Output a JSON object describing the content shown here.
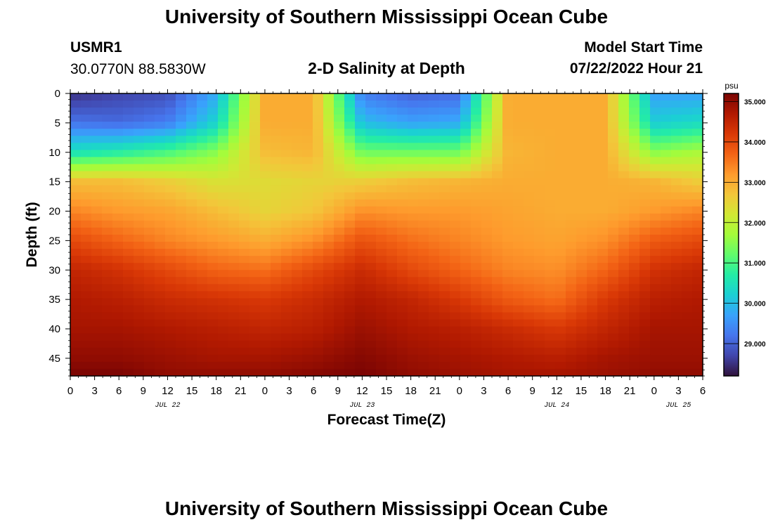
{
  "page": {
    "title": "University of Southern Mississippi Ocean Cube",
    "station": "USMR1",
    "coords": "30.0770N  88.5830W",
    "subtitle": "2-D Salinity at Depth",
    "model_start_label": "Model Start Time",
    "model_start_value": "07/22/2022 Hour 21",
    "title_repeat": "University of Southern Mississippi Ocean Cube"
  },
  "chart_data": {
    "type": "heatmap",
    "title": "2-D Salinity at Depth",
    "xlabel": "Forecast Time(Z)",
    "ylabel": "Depth (ft)",
    "x_hours_range": [
      0,
      78
    ],
    "x_tick_labels": [
      "0",
      "3",
      "6",
      "9",
      "12",
      "15",
      "18",
      "21",
      "0",
      "3",
      "6",
      "9",
      "12",
      "15",
      "18",
      "21",
      "0",
      "3",
      "6",
      "9",
      "12",
      "15",
      "18",
      "21",
      "0",
      "3",
      "6"
    ],
    "date_labels": [
      {
        "text": "JUL 22",
        "hour": 12
      },
      {
        "text": "JUL 23",
        "hour": 36
      },
      {
        "text": "JUL 24",
        "hour": 60
      },
      {
        "text": "JUL 25",
        "hour": 75
      }
    ],
    "y_range": [
      0,
      48
    ],
    "y_ticks": [
      0,
      5,
      10,
      15,
      20,
      25,
      30,
      35,
      40,
      45
    ],
    "colorbar": {
      "unit": "psu",
      "range": [
        28.2,
        35.2
      ],
      "tick_labels": [
        "35.000",
        "34.000",
        "33.000",
        "32.000",
        "31.000",
        "30.000",
        "29.000"
      ],
      "tick_values": [
        35,
        34,
        33,
        32,
        31,
        30,
        29
      ],
      "colors": [
        "#30123b",
        "#4145ab",
        "#4675ed",
        "#39a2fc",
        "#1bcfd4",
        "#24eca6",
        "#61fc6c",
        "#a4fc3b",
        "#d1e834",
        "#f3c63a",
        "#fe9b2d",
        "#f36315",
        "#d93806",
        "#b11901",
        "#7a0403"
      ]
    },
    "salinity_grid_hours": [
      0,
      6,
      12,
      18,
      24,
      30,
      36,
      42,
      48,
      54,
      60,
      66,
      72,
      78
    ],
    "salinity_grid_depths_ft": [
      0,
      5,
      10,
      15,
      20,
      25,
      30,
      35,
      40,
      45,
      48
    ],
    "salinity_grid_psu": [
      [
        28.5,
        28.7,
        28.8,
        29.8,
        33.0,
        33.0,
        29.3,
        29.0,
        29.1,
        33.0,
        33.0,
        33.0,
        29.7,
        29.7
      ],
      [
        29.2,
        29.1,
        29.3,
        30.3,
        33.0,
        33.0,
        30.0,
        29.7,
        29.8,
        33.0,
        33.0,
        33.0,
        30.2,
        30.4
      ],
      [
        30.5,
        30.7,
        31.0,
        31.5,
        32.8,
        32.9,
        31.3,
        31.3,
        31.3,
        32.9,
        33.0,
        33.0,
        31.5,
        31.8
      ],
      [
        32.8,
        32.8,
        32.6,
        32.3,
        32.4,
        32.5,
        32.6,
        32.8,
        32.9,
        33.0,
        33.0,
        33.0,
        32.9,
        32.6
      ],
      [
        33.4,
        33.2,
        33.1,
        32.8,
        32.5,
        32.7,
        33.3,
        33.2,
        33.2,
        33.1,
        33.0,
        33.0,
        33.2,
        33.4
      ],
      [
        34.0,
        33.7,
        33.4,
        33.2,
        33.0,
        33.3,
        33.9,
        33.6,
        33.4,
        33.2,
        33.1,
        33.3,
        33.8,
        34.0
      ],
      [
        34.5,
        34.3,
        34.0,
        33.7,
        33.6,
        34.0,
        34.4,
        34.0,
        33.7,
        33.4,
        33.3,
        33.7,
        34.3,
        34.5
      ],
      [
        34.7,
        34.6,
        34.4,
        34.3,
        34.2,
        34.4,
        34.7,
        34.5,
        34.2,
        33.8,
        33.6,
        34.2,
        34.6,
        34.7
      ],
      [
        34.8,
        34.8,
        34.7,
        34.6,
        34.5,
        34.6,
        34.9,
        34.7,
        34.6,
        34.4,
        34.2,
        34.5,
        34.8,
        34.8
      ],
      [
        35.0,
        35.0,
        34.9,
        34.8,
        34.8,
        34.9,
        35.1,
        34.9,
        34.8,
        34.7,
        34.6,
        34.8,
        34.9,
        34.9
      ],
      [
        35.2,
        35.2,
        35.0,
        35.0,
        35.0,
        35.1,
        35.2,
        35.0,
        34.9,
        34.8,
        34.8,
        34.9,
        35.0,
        35.0
      ]
    ]
  }
}
